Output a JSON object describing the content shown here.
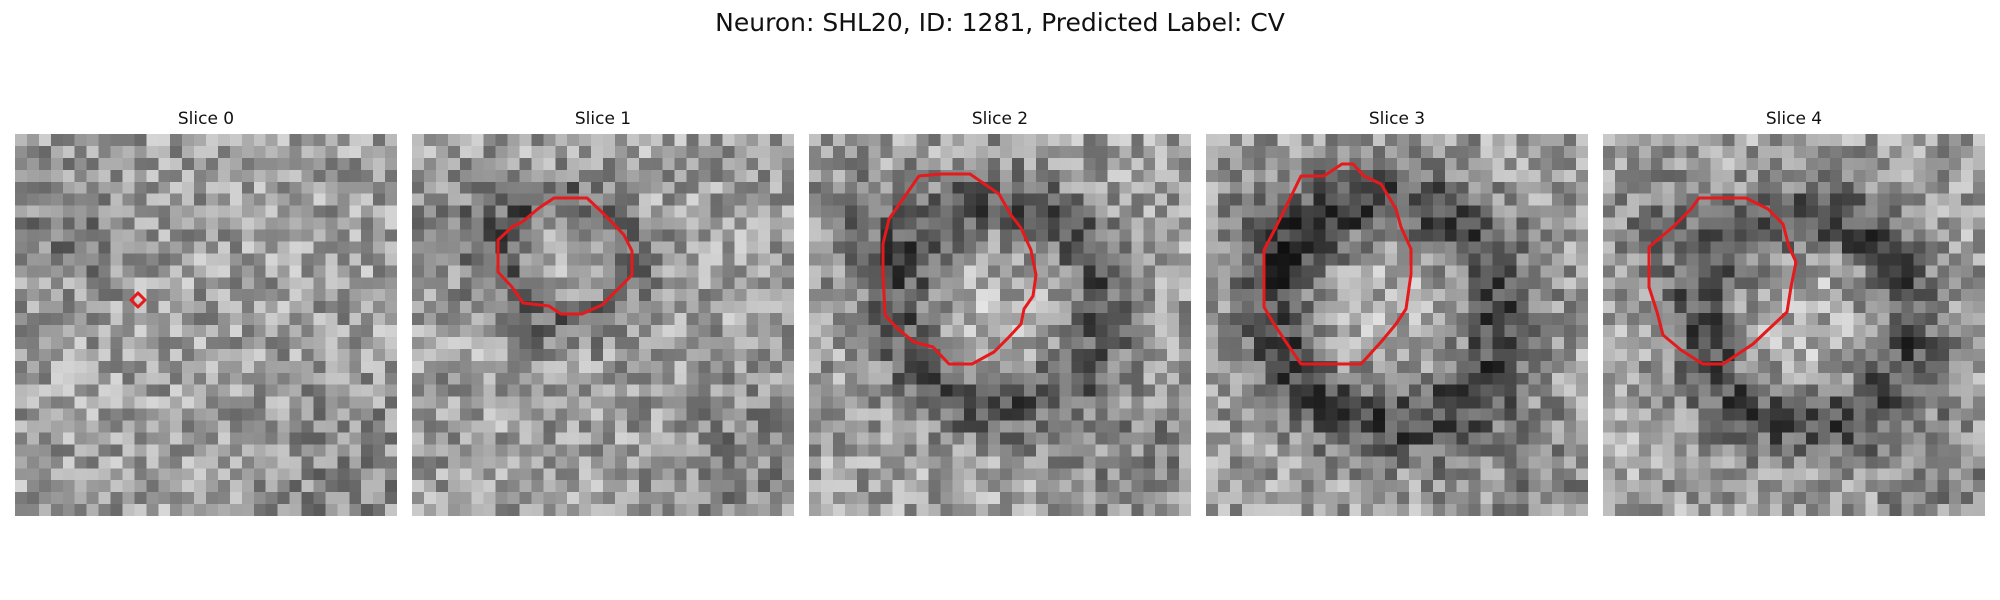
{
  "figure": {
    "title": "Neuron: SHL20, ID: 1281, Predicted Label: CV"
  },
  "colors": {
    "contour": "#e41a1c",
    "background": "#ffffff",
    "colormap": "gray"
  },
  "panels": [
    {
      "title": "Slice 0"
    },
    {
      "title": "Slice 1"
    },
    {
      "title": "Slice 2"
    },
    {
      "title": "Slice 3"
    },
    {
      "title": "Slice 4"
    }
  ]
}
